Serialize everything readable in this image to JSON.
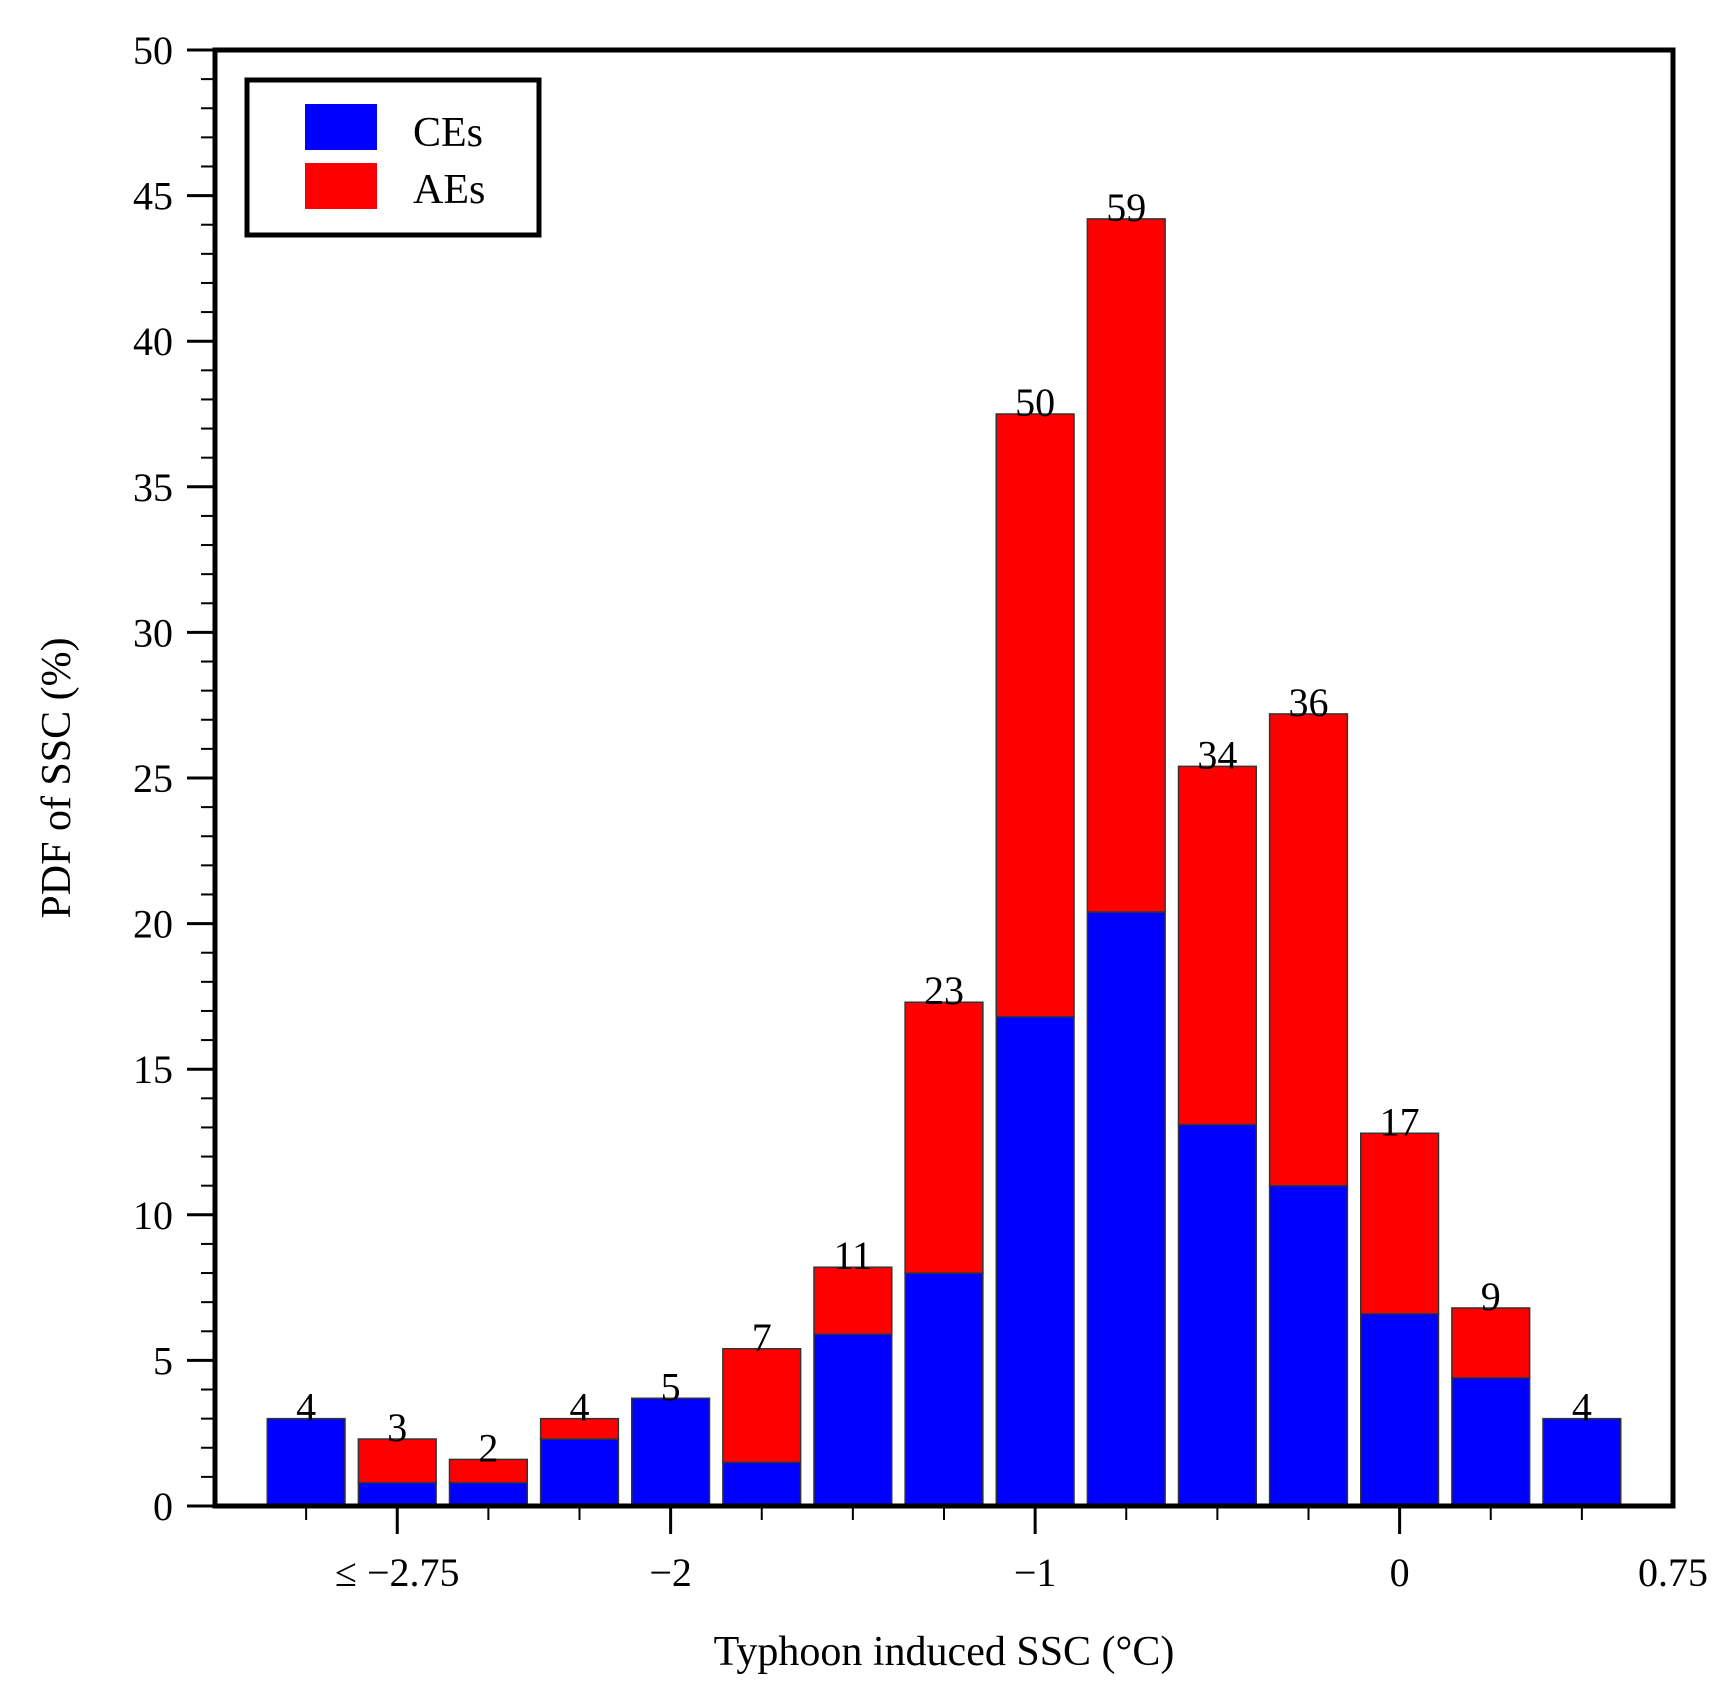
{
  "chart_data": {
    "type": "bar",
    "stacked": true,
    "xlabel": "Typhoon induced SSC (°C)",
    "ylabel": "PDF of SSC (%)",
    "ylim": [
      0,
      50
    ],
    "y_ticks": [
      "0",
      "5",
      "10",
      "15",
      "20",
      "25",
      "30",
      "35",
      "40",
      "45",
      "50"
    ],
    "x_range": [
      -3.25,
      0.75
    ],
    "x_tick_labels": [
      {
        "value": -2.75,
        "label": "≤ −2.75"
      },
      {
        "value": -2,
        "label": "−2"
      },
      {
        "value": -1,
        "label": "−1"
      },
      {
        "value": 0,
        "label": "0"
      },
      {
        "value": 0.75,
        "label": "0.75"
      }
    ],
    "bin_width": 0.25,
    "bin_centers": [
      -3.0,
      -2.75,
      -2.5,
      -2.25,
      -2.0,
      -1.75,
      -1.5,
      -1.25,
      -1.0,
      -0.75,
      -0.5,
      -0.25,
      0.0,
      0.25,
      0.5
    ],
    "counts": [
      "4",
      "3",
      "2",
      "4",
      "5",
      "7",
      "11",
      "23",
      "50",
      "59",
      "34",
      "36",
      "17",
      "9",
      "4"
    ],
    "series": [
      {
        "name": "CEs",
        "color": "#0000ff",
        "values": [
          3.0,
          0.8,
          0.8,
          2.3,
          3.7,
          1.5,
          5.9,
          8.0,
          16.8,
          20.4,
          13.1,
          11.0,
          6.6,
          4.4,
          3.0
        ]
      },
      {
        "name": "AEs",
        "color": "#ff0000",
        "values": [
          0.0,
          1.5,
          0.8,
          0.7,
          0.0,
          3.9,
          2.3,
          9.3,
          20.7,
          23.8,
          12.3,
          16.2,
          6.2,
          2.4,
          0.0
        ]
      }
    ],
    "legend": {
      "position": "top-left",
      "entries": [
        "CEs",
        "AEs"
      ]
    }
  }
}
